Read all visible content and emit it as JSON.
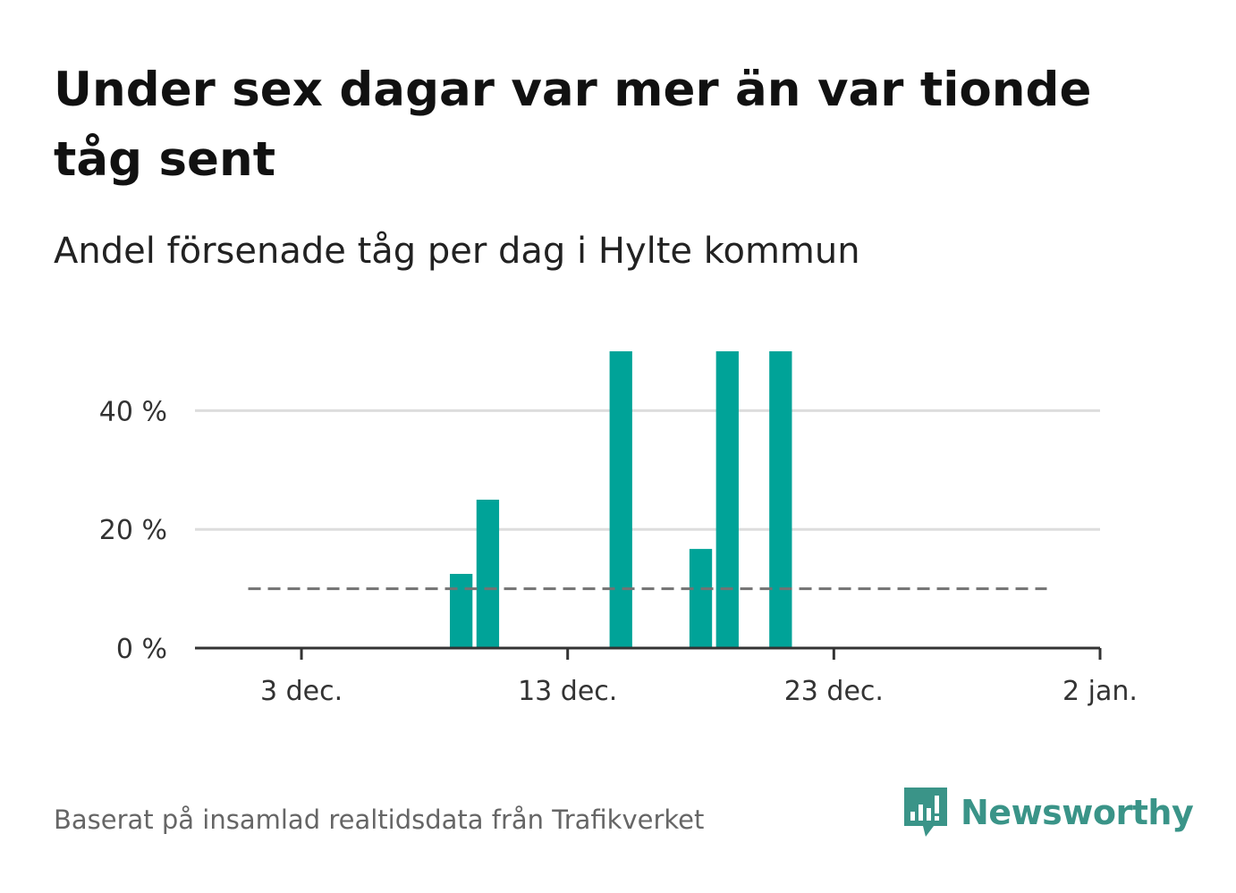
{
  "header": {
    "title": "Under sex dagar var mer än var tionde tåg sent",
    "subtitle": "Andel försenade tåg per dag i Hylte kommun"
  },
  "footer": {
    "source": "Baserat på insamlad realtidsdata från Trafikverket",
    "brand": "Newsworthy",
    "brand_icon": "chart-speech-bubble-icon"
  },
  "colors": {
    "bar": "#00a398",
    "reference_line": "#737373",
    "grid": "#dddddd",
    "axis": "#333333",
    "brand": "#3a9488"
  },
  "chart_data": {
    "type": "bar",
    "x_unit": "date",
    "x": [
      "2023-12-09",
      "2023-12-10",
      "2023-12-15",
      "2023-12-18",
      "2023-12-19",
      "2023-12-21"
    ],
    "values": [
      12.5,
      25,
      50,
      16.7,
      50,
      50
    ],
    "x_ticks": [
      {
        "date": "2023-12-03",
        "label": "3 dec."
      },
      {
        "date": "2023-12-13",
        "label": "13 dec."
      },
      {
        "date": "2023-12-23",
        "label": "23 dec."
      },
      {
        "date": "2024-01-02",
        "label": "2 jan."
      }
    ],
    "y_ticks": [
      {
        "value": 0,
        "label": "0 %"
      },
      {
        "value": 20,
        "label": "20 %"
      },
      {
        "value": 40,
        "label": "40 %"
      }
    ],
    "xlim": [
      "2023-11-29",
      "2024-01-02"
    ],
    "ylim": [
      0,
      50
    ],
    "reference_line": {
      "value": 10,
      "from": "2023-12-01",
      "to": "2023-12-31",
      "style": "dashed"
    },
    "grid": true,
    "xlabel": "",
    "ylabel": ""
  }
}
